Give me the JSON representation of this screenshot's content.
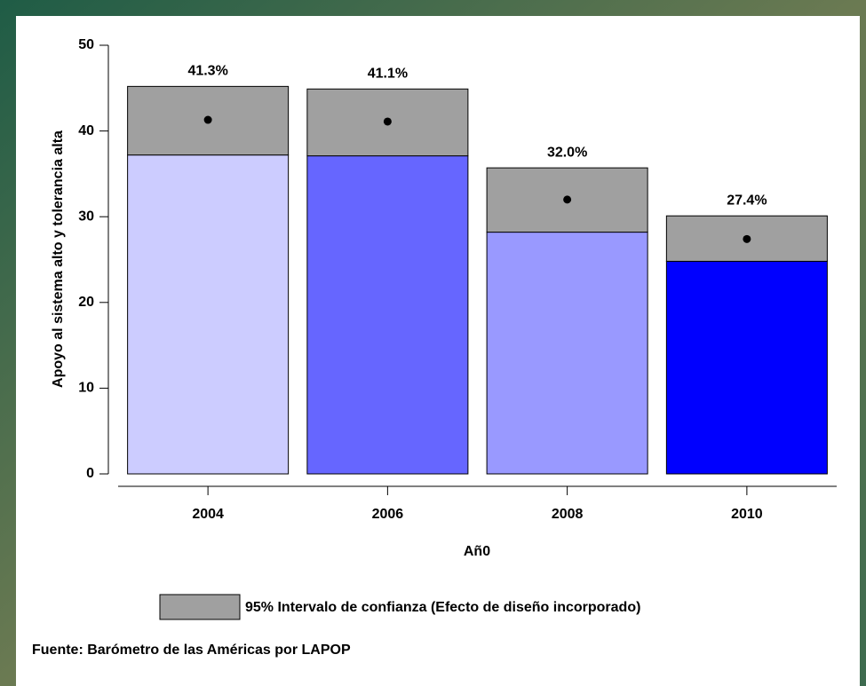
{
  "chart_data": {
    "type": "bar",
    "categories": [
      "2004",
      "2006",
      "2008",
      "2010"
    ],
    "values": [
      41.3,
      41.1,
      32.0,
      27.4
    ],
    "value_labels": [
      "41.3%",
      "41.1%",
      "32.0%",
      "27.4%"
    ],
    "ci_lower": [
      37.2,
      37.1,
      28.2,
      24.8
    ],
    "ci_upper": [
      45.2,
      44.9,
      35.7,
      30.1
    ],
    "colors": [
      "#ccccff",
      "#6666ff",
      "#9999ff",
      "#0000ff"
    ],
    "ci_color": "#a0a0a0",
    "ci_label": "95% Intervalo de confianza (Efecto de diseño incorporado)",
    "xlabel": "Añ0",
    "ylabel": "Apoyo al sistema alto y tolerancia alta",
    "source": "Fuente: Barómetro de las Américas por LAPOP",
    "ylim": [
      0,
      50
    ],
    "yticks": [
      0,
      10,
      20,
      30,
      40,
      50
    ]
  }
}
